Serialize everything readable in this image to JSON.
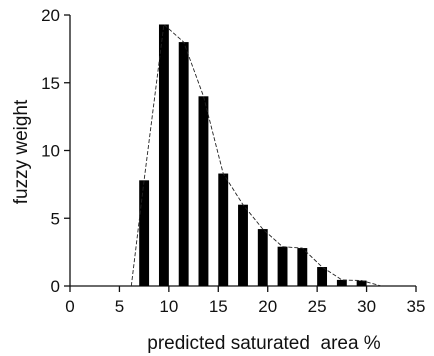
{
  "chart_data": {
    "type": "bar",
    "title": "",
    "xlabel": "predicted saturated  area %",
    "ylabel": "fuzzy weight",
    "xlim": [
      0,
      35
    ],
    "ylim": [
      0,
      20
    ],
    "xticks": [
      0,
      5,
      10,
      15,
      20,
      25,
      30,
      35
    ],
    "yticks": [
      0,
      5,
      10,
      15,
      20
    ],
    "grid": false,
    "legend": "none",
    "bar_color": "#000000",
    "series": [
      {
        "values": [
          {
            "x": 7.5,
            "y": 7.8
          },
          {
            "x": 9.5,
            "y": 19.3
          },
          {
            "x": 11.5,
            "y": 18.0
          },
          {
            "x": 13.5,
            "y": 14.0
          },
          {
            "x": 15.5,
            "y": 8.3
          },
          {
            "x": 17.5,
            "y": 6.0
          },
          {
            "x": 19.5,
            "y": 4.2
          },
          {
            "x": 21.5,
            "y": 2.9
          },
          {
            "x": 23.5,
            "y": 2.8
          },
          {
            "x": 25.5,
            "y": 1.4
          },
          {
            "x": 27.5,
            "y": 0.45
          },
          {
            "x": 29.5,
            "y": 0.4
          }
        ]
      }
    ],
    "envelope_line": {
      "style": "dashed",
      "points": [
        {
          "x": 6.2,
          "y": 0
        },
        {
          "x": 7.5,
          "y": 7.8
        },
        {
          "x": 9.5,
          "y": 19.3
        },
        {
          "x": 11.5,
          "y": 18.0
        },
        {
          "x": 13.5,
          "y": 14.0
        },
        {
          "x": 15.5,
          "y": 8.3
        },
        {
          "x": 17.5,
          "y": 6.0
        },
        {
          "x": 19.5,
          "y": 4.2
        },
        {
          "x": 21.5,
          "y": 2.9
        },
        {
          "x": 23.5,
          "y": 2.8
        },
        {
          "x": 25.5,
          "y": 1.4
        },
        {
          "x": 27.5,
          "y": 0.45
        },
        {
          "x": 29.5,
          "y": 0.4
        },
        {
          "x": 31.5,
          "y": 0
        }
      ]
    }
  }
}
